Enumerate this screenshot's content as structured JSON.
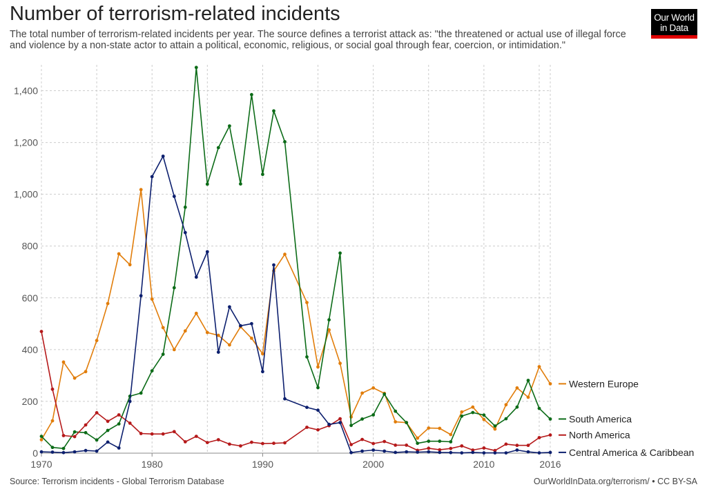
{
  "header": {
    "title": "Number of terrorism-related incidents",
    "subtitle": "The total number of terrorism-related incidents per year. The source defines a terrorist attack as: \"the threatened or actual use of illegal force and violence by a non-state actor to attain a political, economic, religious, or social goal through fear, coercion, or intimidation.\""
  },
  "logo": {
    "line1": "Our World",
    "line2": "in Data"
  },
  "footer": {
    "source": "Source: Terrorism incidents - Global Terrorism Database",
    "credit": "OurWorldInData.org/terrorism/ • CC BY-SA"
  },
  "colors": {
    "grid": "#cccccc",
    "axis": "#888888",
    "text": "#555555"
  },
  "chart_data": {
    "type": "line",
    "x": [
      1970,
      1971,
      1972,
      1973,
      1974,
      1975,
      1976,
      1977,
      1978,
      1979,
      1980,
      1981,
      1982,
      1983,
      1984,
      1985,
      1986,
      1987,
      1988,
      1989,
      1990,
      1991,
      1992,
      1994,
      1995,
      1996,
      1997,
      1998,
      1999,
      2000,
      2001,
      2002,
      2003,
      2004,
      2005,
      2006,
      2007,
      2008,
      2009,
      2010,
      2011,
      2012,
      2013,
      2014,
      2015,
      2016
    ],
    "xlim": [
      1970,
      2016
    ],
    "ylim": [
      0,
      1500
    ],
    "xticks": [
      {
        "value": 1970,
        "label": "1970"
      },
      {
        "value": 1980,
        "label": "1980"
      },
      {
        "value": 1990,
        "label": "1990"
      },
      {
        "value": 2000,
        "label": "2000"
      },
      {
        "value": 2010,
        "label": "2010"
      },
      {
        "value": 2016,
        "label": "2016"
      }
    ],
    "yticks": [
      {
        "value": 0,
        "label": "0"
      },
      {
        "value": 200,
        "label": "200"
      },
      {
        "value": 400,
        "label": "400"
      },
      {
        "value": 600,
        "label": "600"
      },
      {
        "value": 800,
        "label": "800"
      },
      {
        "value": 1000,
        "label": "1,000"
      },
      {
        "value": 1200,
        "label": "1,200"
      },
      {
        "value": 1400,
        "label": "1,400"
      }
    ],
    "vgrid_years": [
      1970,
      1975,
      1980,
      1985,
      1990,
      1995,
      2000,
      2005,
      2010,
      2015
    ],
    "grid": true,
    "legend": "right, labels at line ends",
    "series": [
      {
        "name": "Western Europe",
        "color": "#e17d0a",
        "values": [
          52,
          125,
          352,
          290,
          315,
          435,
          578,
          770,
          728,
          1018,
          595,
          485,
          400,
          472,
          540,
          466,
          455,
          418,
          488,
          444,
          384,
          704,
          768,
          582,
          333,
          476,
          347,
          140,
          232,
          252,
          231,
          121,
          118,
          58,
          97,
          96,
          72,
          159,
          178,
          130,
          93,
          187,
          252,
          216,
          334,
          268
        ]
      },
      {
        "name": "South America",
        "color": "#0b6b17",
        "values": [
          65,
          22,
          18,
          82,
          79,
          51,
          88,
          113,
          220,
          232,
          318,
          382,
          639,
          950,
          1490,
          1039,
          1180,
          1264,
          1040,
          1385,
          1077,
          1322,
          1203,
          372,
          253,
          515,
          773,
          107,
          132,
          148,
          228,
          162,
          118,
          38,
          46,
          46,
          44,
          143,
          157,
          147,
          105,
          133,
          178,
          281,
          173,
          132
        ]
      },
      {
        "name": "North America",
        "color": "#b5191a",
        "values": [
          470,
          247,
          68,
          64,
          109,
          156,
          123,
          148,
          116,
          76,
          74,
          74,
          83,
          44,
          65,
          41,
          52,
          35,
          28,
          42,
          37,
          38,
          40,
          100,
          90,
          106,
          133,
          33,
          53,
          37,
          45,
          31,
          31,
          11,
          19,
          13,
          18,
          28,
          12,
          20,
          10,
          35,
          30,
          30,
          60,
          70
        ]
      },
      {
        "name": "Central America & Caribbean",
        "color": "#0c1f6e",
        "values": [
          5,
          4,
          2,
          5,
          10,
          8,
          43,
          20,
          200,
          608,
          1068,
          1147,
          992,
          852,
          680,
          778,
          390,
          565,
          492,
          500,
          315,
          727,
          210,
          177,
          166,
          111,
          118,
          2,
          8,
          12,
          8,
          3,
          5,
          4,
          5,
          3,
          2,
          1,
          3,
          1,
          1,
          1,
          12,
          5,
          1,
          3
        ]
      }
    ]
  }
}
